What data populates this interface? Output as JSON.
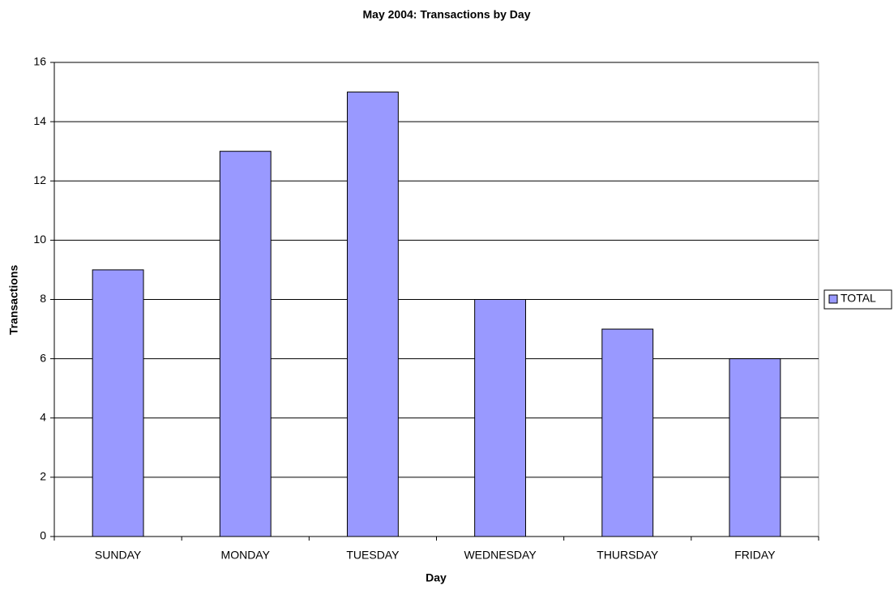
{
  "chart_data": {
    "type": "bar",
    "title": "May 2004: Transactions by Day",
    "xlabel": "Day",
    "ylabel": "Transactions",
    "categories": [
      "SUNDAY",
      "MONDAY",
      "TUESDAY",
      "WEDNESDAY",
      "THURSDAY",
      "FRIDAY"
    ],
    "series": [
      {
        "name": "TOTAL",
        "color": "#9999ff",
        "values": [
          9,
          13,
          15,
          8,
          7,
          6
        ]
      }
    ],
    "ylim": [
      0,
      16
    ],
    "yticks": [
      0,
      2,
      4,
      6,
      8,
      10,
      12,
      14,
      16
    ],
    "grid": true,
    "legend": "right"
  }
}
